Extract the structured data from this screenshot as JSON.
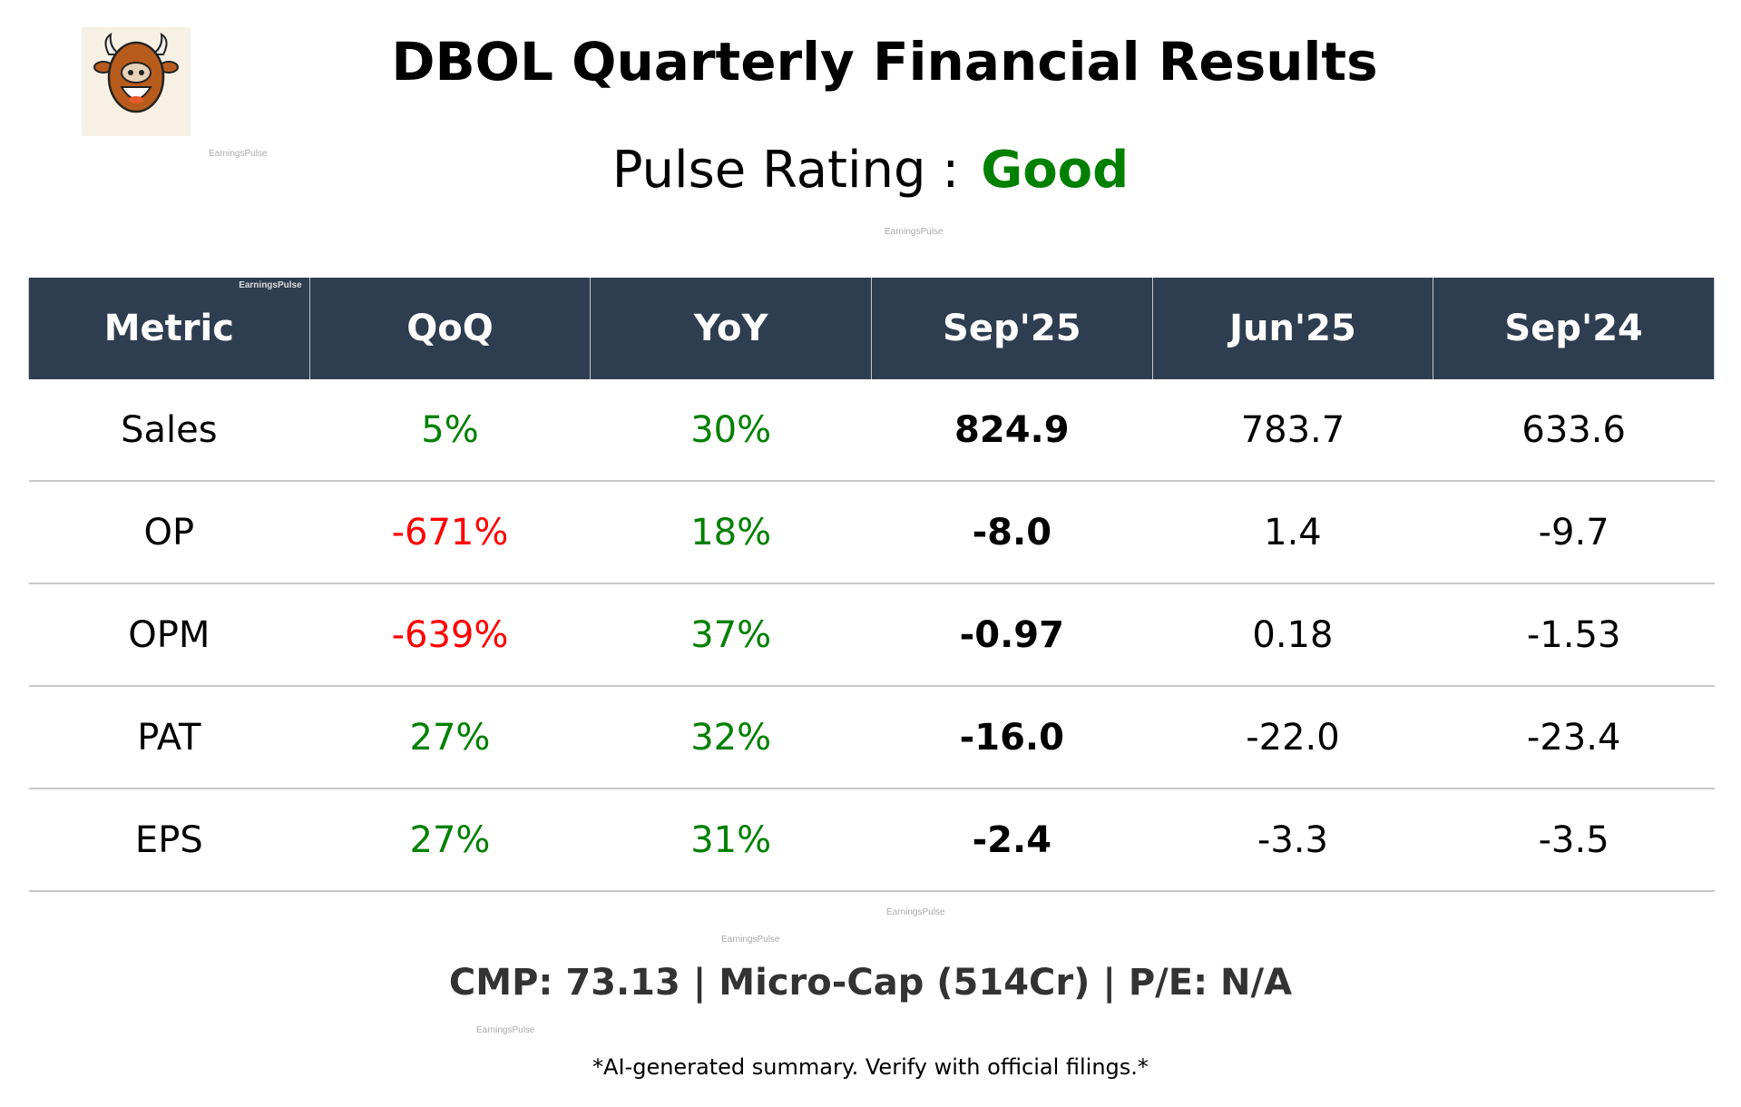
{
  "logo": {
    "text": "EARNINGS PULSE"
  },
  "watermark": "EarningsPulse",
  "header": {
    "title": "DBOL Quarterly Financial Results",
    "rating_label": "Pulse Rating :",
    "rating_value": "Good",
    "rating_color": "#008000"
  },
  "colors": {
    "positive": "#008000",
    "negative": "#ff0000",
    "header_bg": "#2e3d50"
  },
  "table": {
    "columns": [
      "Metric",
      "QoQ",
      "YoY",
      "Sep'25",
      "Jun'25",
      "Sep'24"
    ],
    "rows": [
      {
        "metric": "Sales",
        "qoq": "5%",
        "qoq_dir": "positive",
        "yoy": "30%",
        "yoy_dir": "positive",
        "sep25": "824.9",
        "jun25": "783.7",
        "sep24": "633.6"
      },
      {
        "metric": "OP",
        "qoq": "-671%",
        "qoq_dir": "negative",
        "yoy": "18%",
        "yoy_dir": "positive",
        "sep25": "-8.0",
        "jun25": "1.4",
        "sep24": "-9.7"
      },
      {
        "metric": "OPM",
        "qoq": "-639%",
        "qoq_dir": "negative",
        "yoy": "37%",
        "yoy_dir": "positive",
        "sep25": "-0.97",
        "jun25": "0.18",
        "sep24": "-1.53"
      },
      {
        "metric": "PAT",
        "qoq": "27%",
        "qoq_dir": "positive",
        "yoy": "32%",
        "yoy_dir": "positive",
        "sep25": "-16.0",
        "jun25": "-22.0",
        "sep24": "-23.4"
      },
      {
        "metric": "EPS",
        "qoq": "27%",
        "qoq_dir": "positive",
        "yoy": "31%",
        "yoy_dir": "positive",
        "sep25": "-2.4",
        "jun25": "-3.3",
        "sep24": "-3.5"
      }
    ]
  },
  "summary": "CMP: 73.13 | Micro-Cap (514Cr) | P/E: N/A",
  "disclaimer": "*AI-generated summary. Verify with official filings.*"
}
